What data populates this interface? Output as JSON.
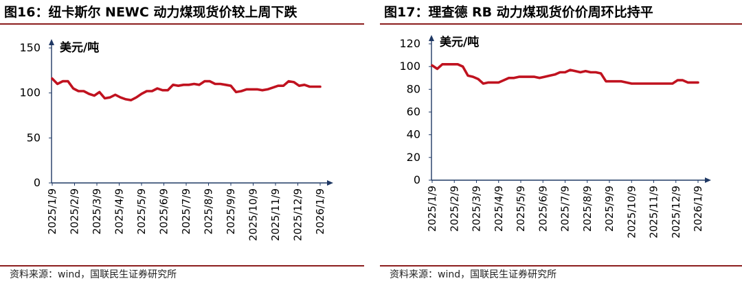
{
  "colors": {
    "series": "#c0121f",
    "axis": "#1f3864",
    "rule": "#8b1c1c"
  },
  "charts": [
    {
      "title": "图16：纽卡斯尔 NEWC 动力煤现货价较上周下跌",
      "source": "资料来源：wind，国联民生证券研究所",
      "chart_data": {
        "type": "line",
        "title": "图16：纽卡斯尔 NEWC 动力煤现货价较上周下跌",
        "unit_label": "美元/吨",
        "ylim": [
          0,
          150
        ],
        "yticks": [
          "0",
          "50",
          "100",
          "150"
        ],
        "xticks": [
          "2025/1/9",
          "2025/2/9",
          "2025/3/9",
          "2025/4/9",
          "2025/5/9",
          "2025/6/9",
          "2025/7/9",
          "2025/8/9",
          "2025/9/9",
          "2025/10/9",
          "2025/11/9",
          "2025/12/9",
          "2026/1/9"
        ],
        "grid": false,
        "series": [
          {
            "values": [
              116,
              110,
              113,
              113,
              105,
              102,
              102,
              99,
              97,
              101,
              94,
              95,
              98,
              95,
              93,
              92,
              95,
              99,
              102,
              102,
              105,
              103,
              103,
              109,
              108,
              109,
              109,
              110,
              109,
              113,
              113,
              110,
              110,
              109,
              108,
              101,
              102,
              104,
              104,
              104,
              103,
              104,
              106,
              108,
              108,
              113,
              112,
              108,
              109,
              107,
              107,
              107
            ]
          }
        ]
      }
    },
    {
      "title": "图17：理查德 RB 动力煤现货价价周环比持平",
      "source": "资料来源：wind，国联民生证券研究所",
      "chart_data": {
        "type": "line",
        "title": "图17：理查德 RB 动力煤现货价价周环比持平",
        "unit_label": "美元/吨",
        "ylim": [
          0,
          120
        ],
        "yticks": [
          "0",
          "20",
          "40",
          "60",
          "80",
          "100",
          "120"
        ],
        "xticks": [
          "2025/1/9",
          "2025/2/9",
          "2025/3/9",
          "2025/4/9",
          "2025/5/9",
          "2025/6/9",
          "2025/7/9",
          "2025/8/9",
          "2025/9/9",
          "2025/10/9",
          "2025/11/9",
          "2025/12/9",
          "2026/1/9"
        ],
        "grid": false,
        "series": [
          {
            "values": [
              101,
              98,
              102,
              102,
              102,
              102,
              100,
              92,
              91,
              89,
              85,
              86,
              86,
              86,
              88,
              90,
              90,
              91,
              91,
              91,
              91,
              90,
              91,
              92,
              93,
              95,
              95,
              97,
              96,
              95,
              96,
              95,
              95,
              94,
              87,
              87,
              87,
              87,
              86,
              85,
              85,
              85,
              85,
              85,
              85,
              85,
              85,
              85,
              88,
              88,
              86,
              86,
              86
            ]
          }
        ]
      }
    }
  ]
}
